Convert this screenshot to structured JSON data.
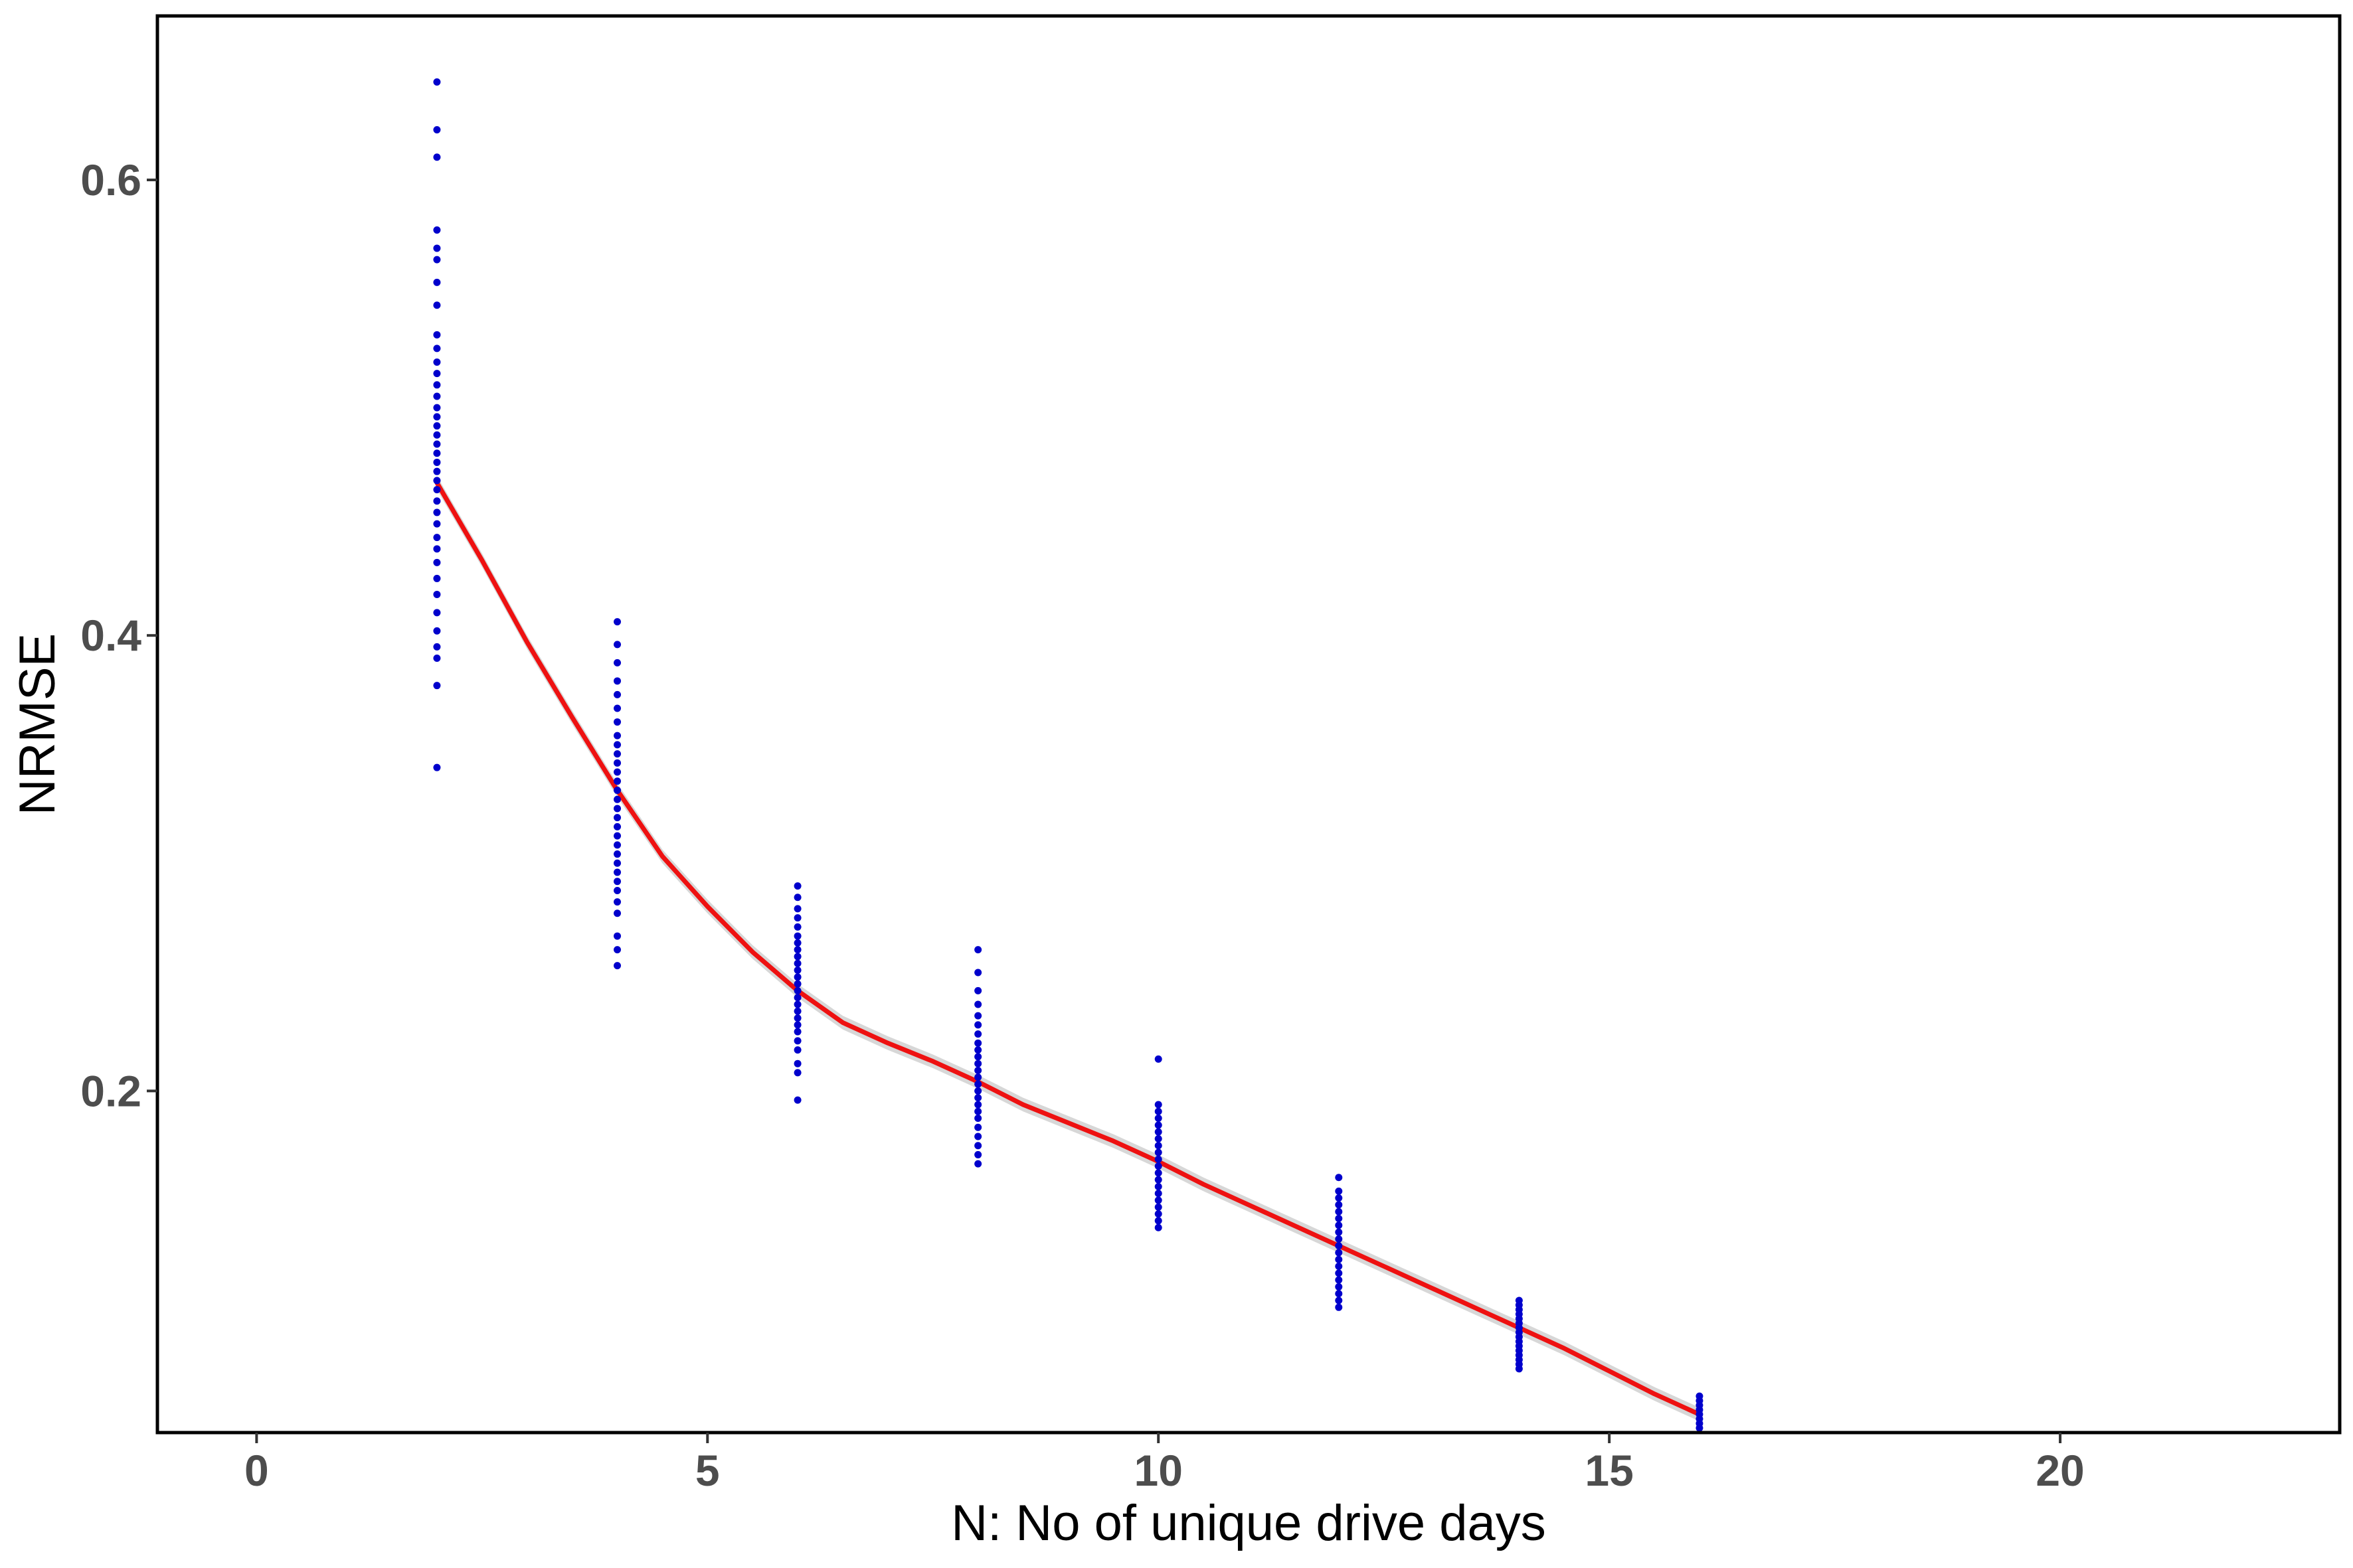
{
  "chart_data": {
    "type": "scatter",
    "xlabel": "N: No of unique drive days",
    "ylabel": "NRMSE",
    "xlim": [
      -1.1,
      23.1
    ],
    "ylim": [
      0.05,
      0.672
    ],
    "x_ticks": [
      0,
      5,
      10,
      15,
      20
    ],
    "y_ticks": [
      0.2,
      0.4,
      0.6
    ],
    "x_tick_labels": [
      "0",
      "5",
      "10",
      "15",
      "20"
    ],
    "y_tick_labels": [
      "0.2",
      "0.4",
      "0.6"
    ],
    "grid": false,
    "legend": "none",
    "colors": {
      "points": "#0000cc",
      "smooth_line": "#ee1111",
      "confidence_band": "#bdbdbd"
    },
    "series": [
      {
        "kind": "points",
        "groups": [
          {
            "x": 2,
            "y": [
              0.342,
              0.378,
              0.39,
              0.395,
              0.402,
              0.41,
              0.418,
              0.425,
              0.432,
              0.438,
              0.443,
              0.449,
              0.454,
              0.459,
              0.464,
              0.468,
              0.472,
              0.476,
              0.48,
              0.484,
              0.488,
              0.492,
              0.496,
              0.5,
              0.505,
              0.51,
              0.515,
              0.52,
              0.526,
              0.532,
              0.545,
              0.555,
              0.565,
              0.57,
              0.578,
              0.61,
              0.622,
              0.643
            ]
          },
          {
            "x": 4,
            "y": [
              0.255,
              0.262,
              0.268,
              0.278,
              0.283,
              0.288,
              0.292,
              0.296,
              0.3,
              0.304,
              0.308,
              0.312,
              0.316,
              0.32,
              0.324,
              0.328,
              0.332,
              0.336,
              0.34,
              0.344,
              0.348,
              0.352,
              0.356,
              0.362,
              0.368,
              0.374,
              0.38,
              0.388,
              0.396,
              0.406
            ]
          },
          {
            "x": 6,
            "y": [
              0.196,
              0.208,
              0.212,
              0.218,
              0.222,
              0.226,
              0.229,
              0.232,
              0.235,
              0.238,
              0.241,
              0.244,
              0.247,
              0.25,
              0.253,
              0.256,
              0.259,
              0.262,
              0.265,
              0.268,
              0.272,
              0.276,
              0.28,
              0.285,
              0.29
            ]
          },
          {
            "x": 8,
            "y": [
              0.168,
              0.172,
              0.176,
              0.18,
              0.184,
              0.188,
              0.191,
              0.194,
              0.197,
              0.2,
              0.203,
              0.206,
              0.209,
              0.212,
              0.215,
              0.218,
              0.221,
              0.225,
              0.229,
              0.233,
              0.238,
              0.244,
              0.252,
              0.262
            ]
          },
          {
            "x": 10,
            "y": [
              0.14,
              0.143,
              0.146,
              0.149,
              0.152,
              0.155,
              0.158,
              0.161,
              0.164,
              0.167,
              0.17,
              0.173,
              0.176,
              0.179,
              0.182,
              0.185,
              0.188,
              0.191,
              0.194,
              0.214
            ]
          },
          {
            "x": 12,
            "y": [
              0.105,
              0.108,
              0.111,
              0.114,
              0.117,
              0.12,
              0.123,
              0.126,
              0.129,
              0.132,
              0.135,
              0.138,
              0.141,
              0.144,
              0.147,
              0.15,
              0.153,
              0.156,
              0.162
            ]
          },
          {
            "x": 14,
            "y": [
              0.078,
              0.08,
              0.082,
              0.084,
              0.086,
              0.088,
              0.09,
              0.092,
              0.094,
              0.096,
              0.098,
              0.1,
              0.102,
              0.104,
              0.106,
              0.108
            ]
          },
          {
            "x": 16,
            "y": [
              0.052,
              0.054,
              0.056,
              0.058,
              0.06,
              0.062,
              0.064,
              0.066
            ]
          }
        ]
      },
      {
        "kind": "smooth",
        "x": [
          2,
          2.5,
          3,
          3.5,
          4,
          4.5,
          5,
          5.5,
          6,
          6.5,
          7,
          7.5,
          8,
          8.5,
          9,
          9.5,
          10,
          10.5,
          11,
          11.5,
          12,
          12.5,
          13,
          13.5,
          14,
          14.5,
          15,
          15.5,
          16
        ],
        "y": [
          0.467,
          0.433,
          0.397,
          0.364,
          0.332,
          0.303,
          0.281,
          0.261,
          0.244,
          0.23,
          0.221,
          0.213,
          0.204,
          0.194,
          0.186,
          0.178,
          0.169,
          0.159,
          0.15,
          0.141,
          0.132,
          0.123,
          0.114,
          0.105,
          0.096,
          0.087,
          0.077,
          0.067,
          0.058
        ],
        "band_halfwidth": 0.003
      }
    ]
  }
}
